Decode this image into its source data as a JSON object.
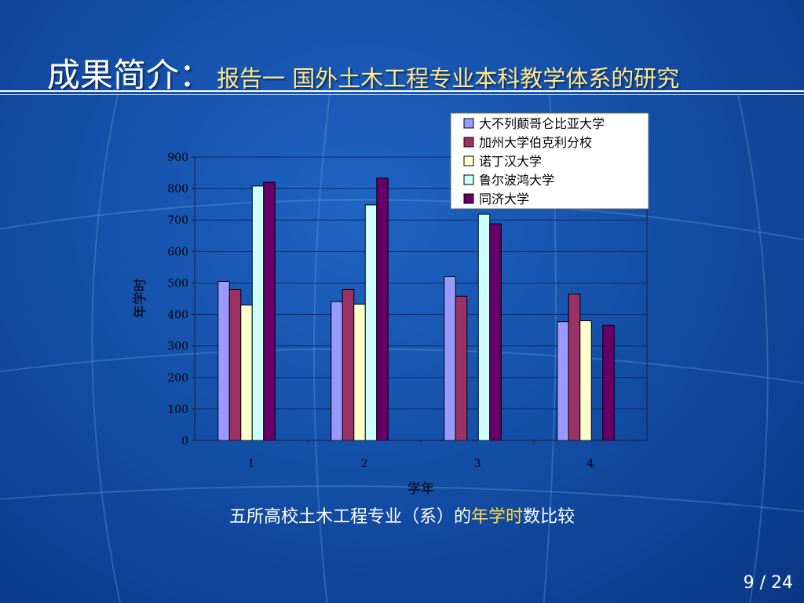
{
  "slide": {
    "title_main": "成果简介：",
    "title_sub": "报告一 国外土木工程专业本科教学体系的研究",
    "caption_pre": "五所高校土木工程专业（系）的",
    "caption_highlight": "年学时",
    "caption_post": "数比较",
    "page_current": "9",
    "page_sep": " / ",
    "page_total": "24",
    "colors": {
      "title_sub": "#ffe98a",
      "caption_highlight": "#ffd84a"
    }
  },
  "chart_data": {
    "type": "bar",
    "title": "",
    "xlabel": "学年",
    "ylabel": "年学时",
    "categories": [
      "1",
      "2",
      "3",
      "4"
    ],
    "ylim": [
      0,
      900
    ],
    "yticks": [
      0,
      100,
      200,
      300,
      400,
      500,
      600,
      700,
      800,
      900
    ],
    "grid": true,
    "legend_position": "top-right",
    "series": [
      {
        "name": "大不列颠哥仑比亚大学",
        "color": "#9999ff",
        "values": [
          505,
          441,
          520,
          377
        ]
      },
      {
        "name": "加州大学伯克利分校",
        "color": "#993366",
        "values": [
          480,
          480,
          458,
          465
        ]
      },
      {
        "name": "诺丁汉大学",
        "color": "#ffffcc",
        "values": [
          430,
          433,
          null,
          380
        ]
      },
      {
        "name": "鲁尔波鸿大学",
        "color": "#ccffff",
        "values": [
          808,
          748,
          718,
          null
        ]
      },
      {
        "name": "同济大学",
        "color": "#660066",
        "values": [
          820,
          833,
          688,
          366
        ]
      }
    ]
  }
}
